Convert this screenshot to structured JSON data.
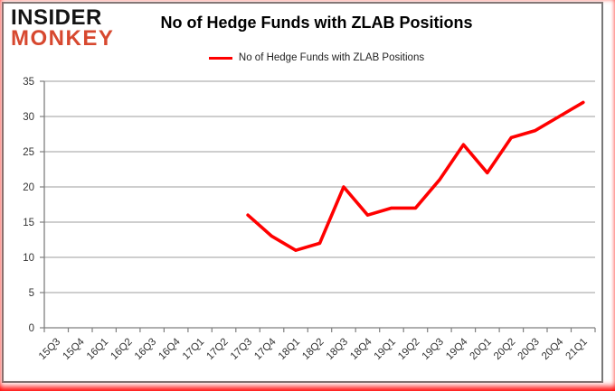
{
  "logo": {
    "line1": "INSIDER",
    "line2": "MONKEY",
    "color1": "#141414",
    "color2": "#D7482F"
  },
  "header": {
    "title": "No of Hedge Funds with ZLAB Positions"
  },
  "legend": {
    "label": "No of Hedge Funds with ZLAB Positions",
    "swatch_color": "#FF0000"
  },
  "chart_data": {
    "type": "line",
    "title": "No of Hedge Funds with ZLAB Positions",
    "categories": [
      "15Q3",
      "15Q4",
      "16Q1",
      "16Q2",
      "16Q3",
      "16Q4",
      "17Q1",
      "17Q2",
      "17Q3",
      "17Q4",
      "18Q1",
      "18Q2",
      "18Q3",
      "18Q4",
      "19Q1",
      "19Q2",
      "19Q3",
      "19Q4",
      "20Q1",
      "20Q2",
      "20Q3",
      "20Q4",
      "21Q1"
    ],
    "series": [
      {
        "name": "No of Hedge Funds with ZLAB Positions",
        "color": "#FF0000",
        "values": [
          null,
          null,
          null,
          null,
          null,
          null,
          null,
          null,
          16,
          13,
          11,
          12,
          20,
          16,
          17,
          17,
          21,
          26,
          22,
          27,
          28,
          30,
          32
        ]
      }
    ],
    "xlabel": "",
    "ylabel": "",
    "ylim": [
      0,
      35
    ],
    "ytick_interval": 5,
    "y_tick_labels": [
      "0",
      "5",
      "10",
      "15",
      "20",
      "25",
      "30",
      "35"
    ],
    "grid": true,
    "legend_position": "top-center",
    "colors": {
      "gridline": "#9c9c9c",
      "axis": "#7f7f7f",
      "tick_label": "#333333",
      "background": "#ffffff",
      "frame_border": "#787878",
      "outer_glow": "#ff0000"
    }
  }
}
